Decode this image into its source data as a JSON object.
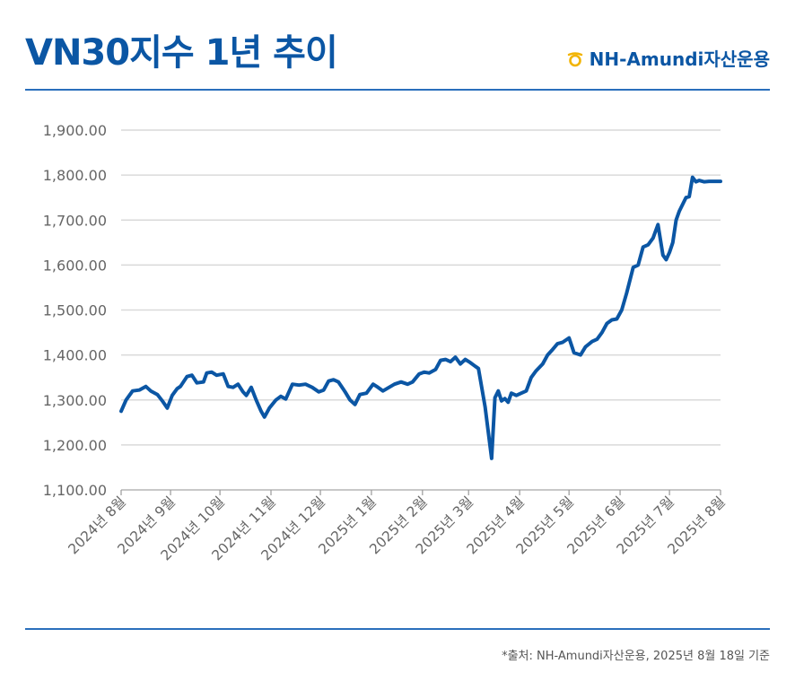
{
  "title": "VN30지수 1년 추이",
  "brand": {
    "name": "NH-Amundi자산운용",
    "logo_icon": "nh-amundi-logo-icon",
    "color": "#0b56a4",
    "logo_color": "#f2b400"
  },
  "source": "*출처: NH-Amundi자산운용, 2025년 8월 18일 기준",
  "colors": {
    "line": "#0b56a4",
    "grid": "#d9d9d9",
    "axis_text": "#666666"
  },
  "chart_data": {
    "type": "line",
    "title": "VN30지수 1년 추이",
    "xlabel": "",
    "ylabel": "",
    "ylim": [
      1100,
      1900
    ],
    "yticks": [
      1100,
      1200,
      1300,
      1400,
      1500,
      1600,
      1700,
      1800,
      1900
    ],
    "ytick_labels": [
      "1,100.00",
      "1,200.00",
      "1,300.00",
      "1,400.00",
      "1,500.00",
      "1,600.00",
      "1,700.00",
      "1,800.00",
      "1,900.00"
    ],
    "xlim": [
      "2024-08-19",
      "2025-08-18"
    ],
    "xticks": [
      "2024-08-18",
      "2024-09-18",
      "2024-10-18",
      "2024-11-18",
      "2024-12-18",
      "2025-01-18",
      "2025-02-18",
      "2025-03-18",
      "2025-04-18",
      "2025-05-18",
      "2025-06-18",
      "2025-07-18",
      "2025-08-18"
    ],
    "xtick_labels": [
      "2024년 8월",
      "2024년 9월",
      "2024년 10월",
      "2024년 11월",
      "2024년 12월",
      "2025년 1월",
      "2025년 2월",
      "2025년 3월",
      "2025년 4월",
      "2025년 5월",
      "2025년 6월",
      "2025년 7월",
      "2025년 8월"
    ],
    "grid": true,
    "legend": "none",
    "series": [
      {
        "x": [
          "2024-08-19",
          "2024-08-22",
          "2024-08-26",
          "2024-08-30",
          "2024-09-03",
          "2024-09-06",
          "2024-09-10",
          "2024-09-13",
          "2024-09-16",
          "2024-09-19",
          "2024-09-22",
          "2024-09-24",
          "2024-09-28",
          "2024-10-01",
          "2024-10-04",
          "2024-10-08",
          "2024-10-10",
          "2024-10-13",
          "2024-10-16",
          "2024-10-20",
          "2024-10-23",
          "2024-10-26",
          "2024-10-29",
          "2024-11-01",
          "2024-11-03",
          "2024-11-06",
          "2024-11-09",
          "2024-11-12",
          "2024-11-14",
          "2024-11-17",
          "2024-11-21",
          "2024-11-24",
          "2024-11-27",
          "2024-12-01",
          "2024-12-05",
          "2024-12-09",
          "2024-12-13",
          "2024-12-17",
          "2024-12-20",
          "2024-12-23",
          "2024-12-26",
          "2024-12-29",
          "2025-01-02",
          "2025-01-05",
          "2025-01-08",
          "2025-01-11",
          "2025-01-15",
          "2025-01-19",
          "2025-01-22",
          "2025-01-25",
          "2025-02-01",
          "2025-02-05",
          "2025-02-09",
          "2025-02-12",
          "2025-02-16",
          "2025-02-19",
          "2025-02-22",
          "2025-02-26",
          "2025-03-01",
          "2025-03-04",
          "2025-03-07",
          "2025-03-10",
          "2025-03-13",
          "2025-03-16",
          "2025-03-19",
          "2025-03-22",
          "2025-03-24",
          "2025-03-28",
          "2025-04-01",
          "2025-04-03",
          "2025-04-05",
          "2025-04-07",
          "2025-04-09",
          "2025-04-11",
          "2025-04-13",
          "2025-04-16",
          "2025-04-19",
          "2025-04-22",
          "2025-04-25",
          "2025-04-28",
          "2025-05-02",
          "2025-05-05",
          "2025-05-08",
          "2025-05-11",
          "2025-05-14",
          "2025-05-18",
          "2025-05-21",
          "2025-05-25",
          "2025-05-28",
          "2025-06-01",
          "2025-06-04",
          "2025-06-07",
          "2025-06-10",
          "2025-06-13",
          "2025-06-16",
          "2025-06-19",
          "2025-06-22",
          "2025-06-26",
          "2025-06-29",
          "2025-07-02",
          "2025-07-05",
          "2025-07-08",
          "2025-07-11",
          "2025-07-14",
          "2025-07-16",
          "2025-07-18",
          "2025-07-20",
          "2025-07-22",
          "2025-07-24",
          "2025-07-26",
          "2025-07-28",
          "2025-07-30",
          "2025-08-01",
          "2025-08-03",
          "2025-08-05",
          "2025-08-08",
          "2025-08-11",
          "2025-08-13",
          "2025-08-14",
          "2025-08-15",
          "2025-08-18"
        ],
        "values": [
          1275,
          1300,
          1320,
          1322,
          1330,
          1320,
          1312,
          1298,
          1282,
          1310,
          1325,
          1330,
          1352,
          1355,
          1338,
          1340,
          1360,
          1362,
          1355,
          1358,
          1330,
          1328,
          1335,
          1318,
          1310,
          1328,
          1300,
          1275,
          1262,
          1282,
          1300,
          1308,
          1302,
          1335,
          1333,
          1335,
          1328,
          1318,
          1322,
          1342,
          1345,
          1340,
          1318,
          1300,
          1290,
          1312,
          1315,
          1335,
          1328,
          1320,
          1335,
          1340,
          1335,
          1340,
          1358,
          1362,
          1360,
          1368,
          1388,
          1390,
          1385,
          1395,
          1380,
          1390,
          1383,
          1375,
          1370,
          1285,
          1170,
          1305,
          1320,
          1298,
          1303,
          1295,
          1315,
          1310,
          1315,
          1320,
          1350,
          1365,
          1380,
          1400,
          1412,
          1425,
          1428,
          1438,
          1405,
          1400,
          1418,
          1430,
          1435,
          1450,
          1470,
          1478,
          1480,
          1500,
          1538,
          1595,
          1600,
          1640,
          1645,
          1660,
          1690,
          1622,
          1612,
          1628,
          1650,
          1700,
          1720,
          1735,
          1750,
          1752,
          1795,
          1785,
          1788,
          1785,
          1786,
          1786,
          1786,
          1786,
          1786
        ]
      }
    ]
  }
}
